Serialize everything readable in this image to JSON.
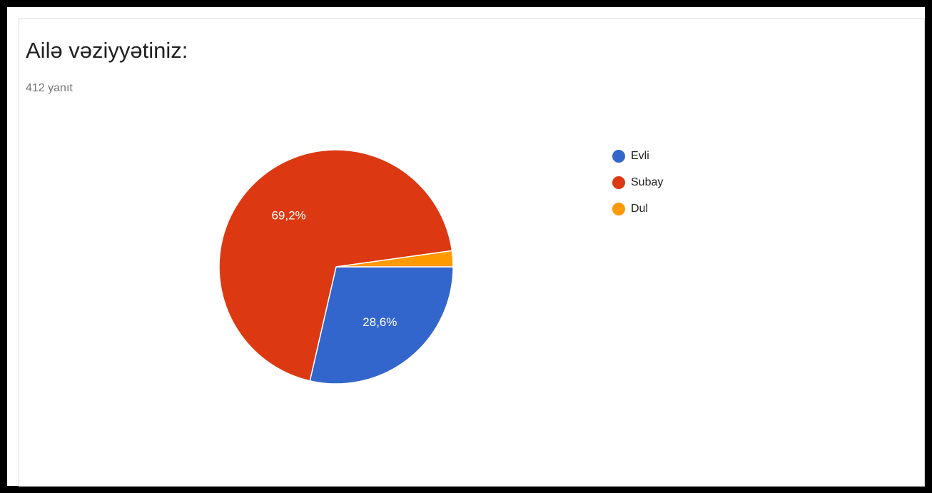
{
  "header": {
    "title": "Ailə vəziyyətiniz:",
    "responses": "412 yanıt"
  },
  "chart_data": {
    "type": "pie",
    "title": "Ailə vəziyyətiniz:",
    "total_responses": 412,
    "series": [
      {
        "name": "Evli",
        "value": 28.6,
        "label": "28,6%",
        "color": "#3366cc"
      },
      {
        "name": "Subay",
        "value": 69.2,
        "label": "69,2%",
        "color": "#dc3912"
      },
      {
        "name": "Dul",
        "value": 2.2,
        "label": "",
        "color": "#ff9900"
      }
    ],
    "legend_position": "right"
  }
}
